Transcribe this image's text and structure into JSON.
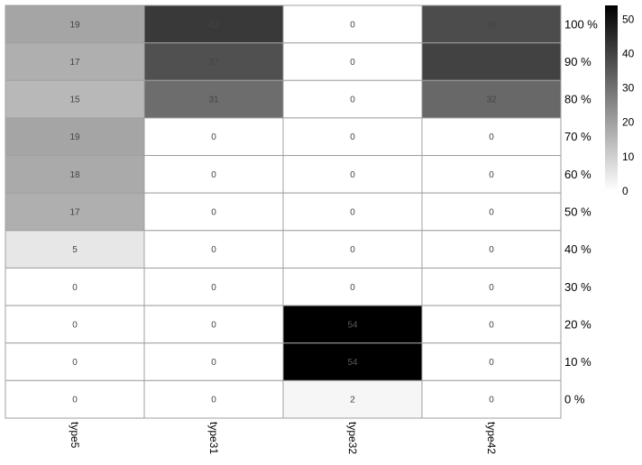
{
  "chart_data": {
    "type": "heatmap",
    "columns": [
      "type5",
      "type31",
      "type32",
      "type42"
    ],
    "rows": [
      "100 %",
      "90 %",
      "80 %",
      "70 %",
      "60 %",
      "50 %",
      "40 %",
      "30 %",
      "20 %",
      "10 %",
      "0 %"
    ],
    "values": [
      [
        19,
        42,
        0,
        38
      ],
      [
        17,
        37,
        0,
        40
      ],
      [
        15,
        31,
        0,
        32
      ],
      [
        19,
        0,
        0,
        0
      ],
      [
        18,
        0,
        0,
        0
      ],
      [
        17,
        0,
        0,
        0
      ],
      [
        5,
        0,
        0,
        0
      ],
      [
        0,
        0,
        0,
        0
      ],
      [
        0,
        0,
        54,
        0
      ],
      [
        0,
        0,
        54,
        0
      ],
      [
        0,
        0,
        2,
        0
      ]
    ],
    "color_scale": {
      "min": 0,
      "max": 54,
      "low_color": "#ffffff",
      "high_color": "#000000",
      "ticks": [
        0,
        10,
        20,
        30,
        40,
        50
      ]
    },
    "legend_placement": "top-right",
    "grid_color": "#a0a0a0",
    "title": "",
    "xlabel": "",
    "ylabel": ""
  }
}
